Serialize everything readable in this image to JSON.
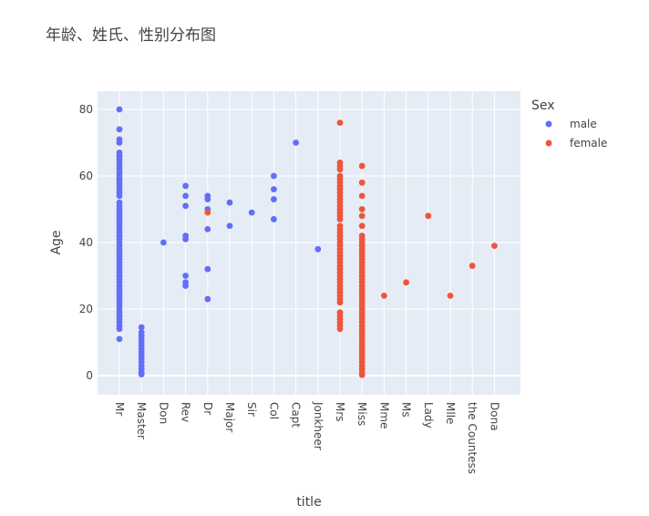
{
  "chart_data": {
    "type": "scatter",
    "title": "年龄、姓氏、性别分布图",
    "xlabel": "title",
    "ylabel": "Age",
    "ylim": [
      -5,
      86
    ],
    "yticks": [
      0,
      20,
      40,
      60,
      80
    ],
    "grid": true,
    "legend_title": "Sex",
    "legend_position": "right",
    "categories": [
      "Mr",
      "Master",
      "Don",
      "Rev",
      "Dr",
      "Major",
      "Sir",
      "Col",
      "Capt",
      "Jonkheer",
      "Mrs",
      "Miss",
      "Mme",
      "Ms",
      "Lady",
      "Mlle",
      "the Countess",
      "Dona"
    ],
    "series": [
      {
        "name": "male",
        "color": "#636efa",
        "points": [
          [
            "Mr",
            11
          ],
          [
            "Mr",
            14
          ],
          [
            "Mr",
            15
          ],
          [
            "Mr",
            16
          ],
          [
            "Mr",
            17
          ],
          [
            "Mr",
            18
          ],
          [
            "Mr",
            19
          ],
          [
            "Mr",
            20
          ],
          [
            "Mr",
            21
          ],
          [
            "Mr",
            22
          ],
          [
            "Mr",
            23
          ],
          [
            "Mr",
            24
          ],
          [
            "Mr",
            25
          ],
          [
            "Mr",
            26
          ],
          [
            "Mr",
            27
          ],
          [
            "Mr",
            28
          ],
          [
            "Mr",
            29
          ],
          [
            "Mr",
            30
          ],
          [
            "Mr",
            31
          ],
          [
            "Mr",
            32
          ],
          [
            "Mr",
            33
          ],
          [
            "Mr",
            34
          ],
          [
            "Mr",
            35
          ],
          [
            "Mr",
            36
          ],
          [
            "Mr",
            37
          ],
          [
            "Mr",
            38
          ],
          [
            "Mr",
            39
          ],
          [
            "Mr",
            40
          ],
          [
            "Mr",
            41
          ],
          [
            "Mr",
            42
          ],
          [
            "Mr",
            43
          ],
          [
            "Mr",
            44
          ],
          [
            "Mr",
            45
          ],
          [
            "Mr",
            46
          ],
          [
            "Mr",
            47
          ],
          [
            "Mr",
            48
          ],
          [
            "Mr",
            49
          ],
          [
            "Mr",
            50
          ],
          [
            "Mr",
            51
          ],
          [
            "Mr",
            52
          ],
          [
            "Mr",
            54
          ],
          [
            "Mr",
            55
          ],
          [
            "Mr",
            56
          ],
          [
            "Mr",
            57
          ],
          [
            "Mr",
            58
          ],
          [
            "Mr",
            59
          ],
          [
            "Mr",
            60
          ],
          [
            "Mr",
            61
          ],
          [
            "Mr",
            62
          ],
          [
            "Mr",
            63
          ],
          [
            "Mr",
            64
          ],
          [
            "Mr",
            65
          ],
          [
            "Mr",
            66
          ],
          [
            "Mr",
            67
          ],
          [
            "Mr",
            70
          ],
          [
            "Mr",
            71
          ],
          [
            "Mr",
            74
          ],
          [
            "Mr",
            80
          ],
          [
            "Master",
            0.4
          ],
          [
            "Master",
            0.8
          ],
          [
            "Master",
            1
          ],
          [
            "Master",
            2
          ],
          [
            "Master",
            3
          ],
          [
            "Master",
            4
          ],
          [
            "Master",
            5
          ],
          [
            "Master",
            6
          ],
          [
            "Master",
            7
          ],
          [
            "Master",
            8
          ],
          [
            "Master",
            9
          ],
          [
            "Master",
            10
          ],
          [
            "Master",
            11
          ],
          [
            "Master",
            12
          ],
          [
            "Master",
            13
          ],
          [
            "Master",
            14.5
          ],
          [
            "Don",
            40
          ],
          [
            "Rev",
            27
          ],
          [
            "Rev",
            28
          ],
          [
            "Rev",
            30
          ],
          [
            "Rev",
            41
          ],
          [
            "Rev",
            42
          ],
          [
            "Rev",
            51
          ],
          [
            "Rev",
            54
          ],
          [
            "Rev",
            57
          ],
          [
            "Dr",
            23
          ],
          [
            "Dr",
            32
          ],
          [
            "Dr",
            44
          ],
          [
            "Dr",
            50
          ],
          [
            "Dr",
            53
          ],
          [
            "Dr",
            54
          ],
          [
            "Major",
            45
          ],
          [
            "Major",
            52
          ],
          [
            "Sir",
            49
          ],
          [
            "Col",
            47
          ],
          [
            "Col",
            53
          ],
          [
            "Col",
            56
          ],
          [
            "Col",
            60
          ],
          [
            "Capt",
            70
          ],
          [
            "Jonkheer",
            38
          ]
        ]
      },
      {
        "name": "female",
        "color": "#ef553b",
        "points": [
          [
            "Dr",
            49
          ],
          [
            "Mrs",
            14
          ],
          [
            "Mrs",
            15
          ],
          [
            "Mrs",
            16
          ],
          [
            "Mrs",
            17
          ],
          [
            "Mrs",
            18
          ],
          [
            "Mrs",
            19
          ],
          [
            "Mrs",
            22
          ],
          [
            "Mrs",
            23
          ],
          [
            "Mrs",
            24
          ],
          [
            "Mrs",
            25
          ],
          [
            "Mrs",
            26
          ],
          [
            "Mrs",
            27
          ],
          [
            "Mrs",
            28
          ],
          [
            "Mrs",
            29
          ],
          [
            "Mrs",
            30
          ],
          [
            "Mrs",
            31
          ],
          [
            "Mrs",
            32
          ],
          [
            "Mrs",
            33
          ],
          [
            "Mrs",
            34
          ],
          [
            "Mrs",
            35
          ],
          [
            "Mrs",
            36
          ],
          [
            "Mrs",
            37
          ],
          [
            "Mrs",
            38
          ],
          [
            "Mrs",
            39
          ],
          [
            "Mrs",
            40
          ],
          [
            "Mrs",
            41
          ],
          [
            "Mrs",
            42
          ],
          [
            "Mrs",
            43
          ],
          [
            "Mrs",
            44
          ],
          [
            "Mrs",
            45
          ],
          [
            "Mrs",
            47
          ],
          [
            "Mrs",
            48
          ],
          [
            "Mrs",
            49
          ],
          [
            "Mrs",
            50
          ],
          [
            "Mrs",
            51
          ],
          [
            "Mrs",
            52
          ],
          [
            "Mrs",
            53
          ],
          [
            "Mrs",
            54
          ],
          [
            "Mrs",
            55
          ],
          [
            "Mrs",
            56
          ],
          [
            "Mrs",
            57
          ],
          [
            "Mrs",
            58
          ],
          [
            "Mrs",
            59
          ],
          [
            "Mrs",
            60
          ],
          [
            "Mrs",
            62
          ],
          [
            "Mrs",
            63
          ],
          [
            "Mrs",
            64
          ],
          [
            "Mrs",
            76
          ],
          [
            "Miss",
            0.2
          ],
          [
            "Miss",
            1
          ],
          [
            "Miss",
            2
          ],
          [
            "Miss",
            3
          ],
          [
            "Miss",
            4
          ],
          [
            "Miss",
            5
          ],
          [
            "Miss",
            6
          ],
          [
            "Miss",
            7
          ],
          [
            "Miss",
            8
          ],
          [
            "Miss",
            9
          ],
          [
            "Miss",
            10
          ],
          [
            "Miss",
            11
          ],
          [
            "Miss",
            12
          ],
          [
            "Miss",
            13
          ],
          [
            "Miss",
            14
          ],
          [
            "Miss",
            15
          ],
          [
            "Miss",
            16
          ],
          [
            "Miss",
            17
          ],
          [
            "Miss",
            18
          ],
          [
            "Miss",
            19
          ],
          [
            "Miss",
            20
          ],
          [
            "Miss",
            21
          ],
          [
            "Miss",
            22
          ],
          [
            "Miss",
            23
          ],
          [
            "Miss",
            24
          ],
          [
            "Miss",
            25
          ],
          [
            "Miss",
            26
          ],
          [
            "Miss",
            27
          ],
          [
            "Miss",
            28
          ],
          [
            "Miss",
            29
          ],
          [
            "Miss",
            30
          ],
          [
            "Miss",
            31
          ],
          [
            "Miss",
            32
          ],
          [
            "Miss",
            33
          ],
          [
            "Miss",
            34
          ],
          [
            "Miss",
            35
          ],
          [
            "Miss",
            36
          ],
          [
            "Miss",
            37
          ],
          [
            "Miss",
            38
          ],
          [
            "Miss",
            39
          ],
          [
            "Miss",
            40
          ],
          [
            "Miss",
            41
          ],
          [
            "Miss",
            42
          ],
          [
            "Miss",
            45
          ],
          [
            "Miss",
            48
          ],
          [
            "Miss",
            50
          ],
          [
            "Miss",
            54
          ],
          [
            "Miss",
            58
          ],
          [
            "Miss",
            63
          ],
          [
            "Mme",
            24
          ],
          [
            "Ms",
            28
          ],
          [
            "Lady",
            48
          ],
          [
            "Mlle",
            24
          ],
          [
            "the Countess",
            33
          ],
          [
            "Dona",
            39
          ]
        ]
      }
    ]
  }
}
